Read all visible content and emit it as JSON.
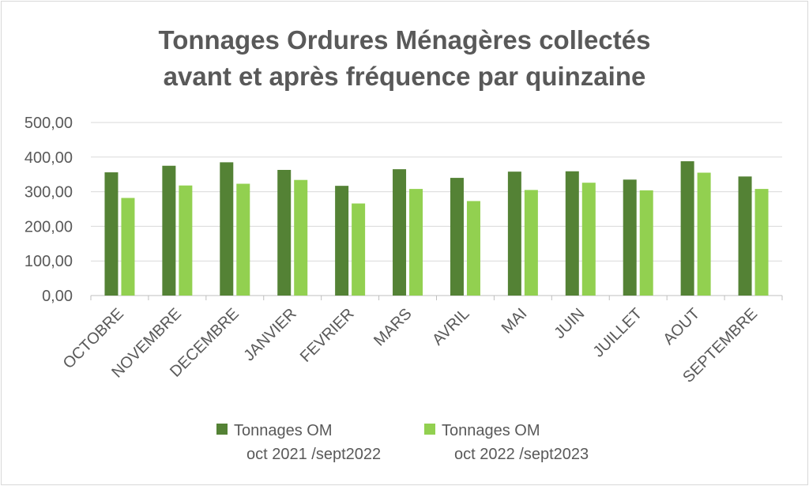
{
  "chart_data": {
    "type": "bar",
    "title_lines": [
      "Tonnages Ordures Ménagères collectés",
      "avant et après fréquence par quinzaine"
    ],
    "categories": [
      "OCTOBRE",
      "NOVEMBRE",
      "DECEMBRE",
      "JANVIER",
      "FEVRIER",
      "MARS",
      "AVRIL",
      "MAI",
      "JUIN",
      "JUILLET",
      "AOUT",
      "SEPTEMBRE"
    ],
    "series": [
      {
        "name_lines": [
          "Tonnages OM",
          "oct 2021 /sept2022"
        ],
        "color": "#548235",
        "values": [
          356,
          375,
          385,
          363,
          317,
          365,
          340,
          358,
          359,
          335,
          388,
          344
        ]
      },
      {
        "name_lines": [
          "Tonnages OM",
          "oct 2022 /sept2023"
        ],
        "color": "#92d050",
        "values": [
          282,
          318,
          323,
          334,
          266,
          308,
          273,
          305,
          326,
          304,
          355,
          308
        ]
      }
    ],
    "yticks": [
      "0,00",
      "100,00",
      "200,00",
      "300,00",
      "400,00",
      "500,00"
    ],
    "ylim": [
      0,
      500
    ],
    "grid": true,
    "legend_position": "bottom"
  }
}
